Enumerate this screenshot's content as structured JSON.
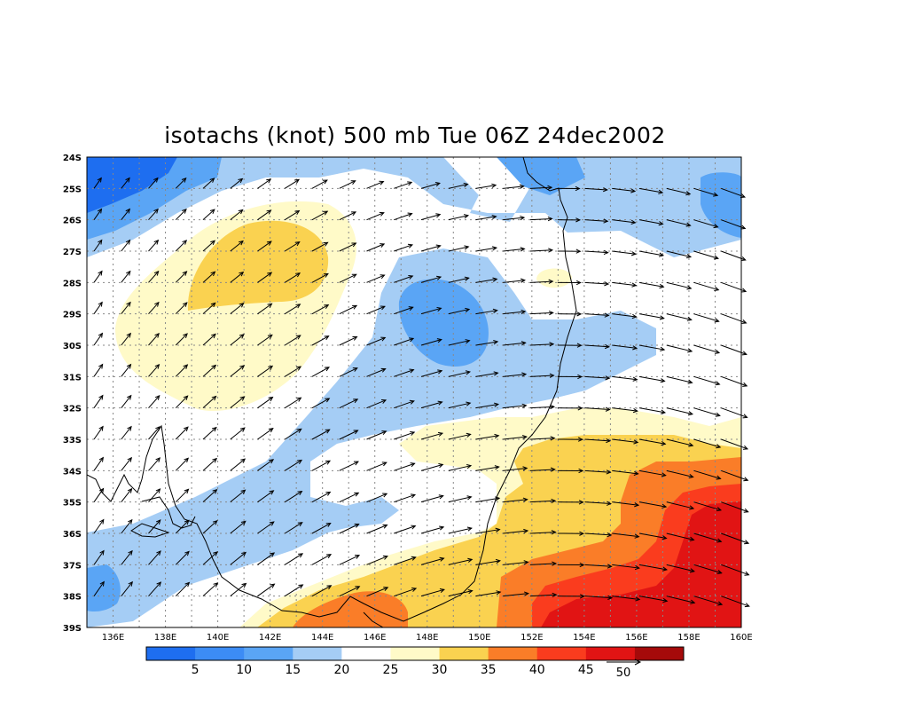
{
  "title": "isotachs (knot) 500 mb Tue 06Z 24dec2002",
  "latitude_labels": [
    "24S",
    "25S",
    "26S",
    "27S",
    "28S",
    "29S",
    "30S",
    "31S",
    "32S",
    "33S",
    "34S",
    "35S",
    "36S",
    "37S",
    "38S",
    "39S"
  ],
  "longitude_labels": [
    "136E",
    "138E",
    "140E",
    "142E",
    "144E",
    "146E",
    "148E",
    "150E",
    "152E",
    "154E",
    "156E",
    "158E",
    "160E"
  ],
  "colorbar": {
    "labels": [
      "5",
      "10",
      "15",
      "20",
      "25",
      "30",
      "35",
      "40",
      "45"
    ],
    "colors": [
      "#1e6ef0",
      "#3c8cf5",
      "#5aa5f5",
      "#a5cdf5",
      "#ffffff",
      "#fffac8",
      "#fad250",
      "#fa7d28",
      "#fa3c1e",
      "#e11414",
      "#a50a0a"
    ]
  },
  "vector_reference": {
    "label": "50"
  },
  "colors": {
    "grid": "#888888",
    "coast": "#000000",
    "arrow": "#000000"
  }
}
